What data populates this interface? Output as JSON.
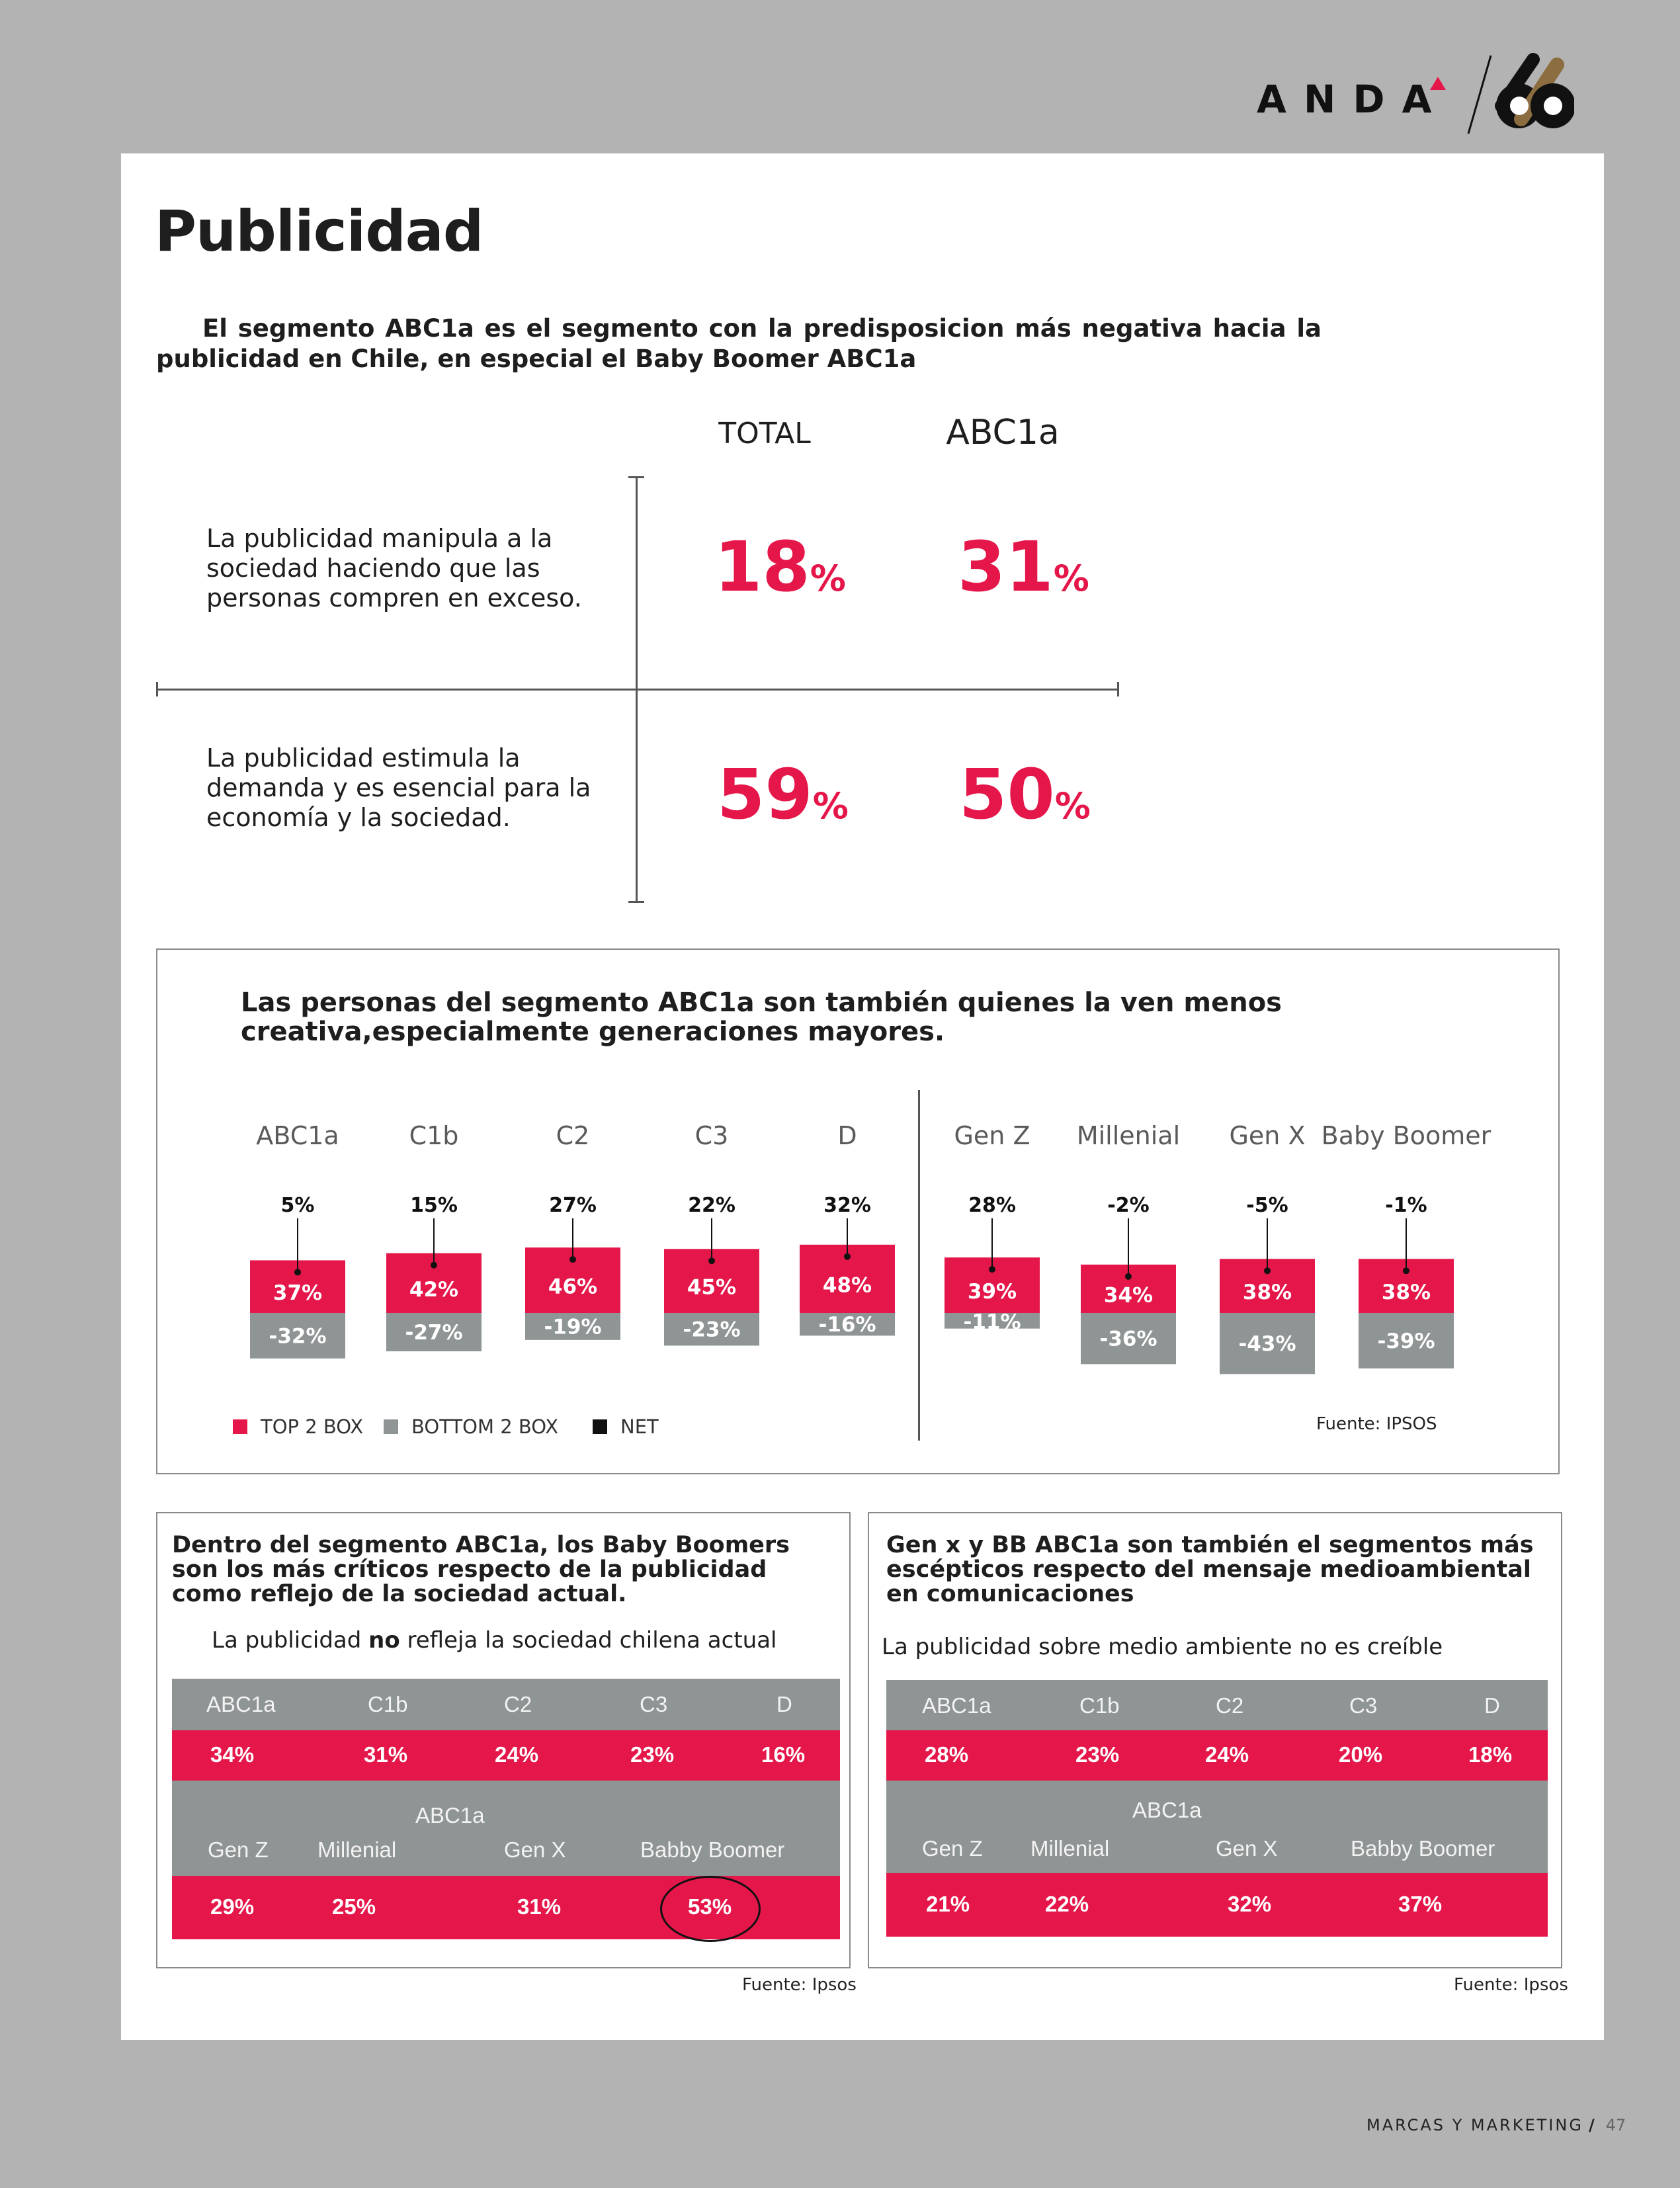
{
  "header": {
    "logo_text": "ANDA",
    "logo_mark": "66",
    "logo_accent_color": "#e5174a"
  },
  "title": "Publicidad",
  "intro": "El segmento ABC1a es el segmento con la predisposicion más negativa hacia la publicidad en Chile, en especial el Baby Boomer ABC1a",
  "matrix": {
    "col_total": "TOTAL",
    "col_abc": "ABC1a",
    "rows": [
      {
        "statement": "La publicidad manipula a la sociedad haciendo que las personas compren en exceso.",
        "total": "18",
        "abc": "31"
      },
      {
        "statement": "La publicidad estimula la demanda y es esencial para la economía y la sociedad.",
        "total": "59",
        "abc": "50"
      }
    ],
    "pct_sign": "%"
  },
  "chart": {
    "title": "Las personas del segmento ABC1a son también quienes la ven menos creativa,especialmente generaciones mayores.",
    "source": "Fuente: IPSOS",
    "legend": {
      "top": "TOP 2 BOX",
      "bottom": "BOTTOM 2 BOX",
      "net": "NET"
    },
    "colors": {
      "top": "#e5174a",
      "bottom": "#8f9495",
      "net": "#111111"
    }
  },
  "chart_data": {
    "type": "bar",
    "categories": [
      "ABC1a",
      "C1b",
      "C2",
      "C3",
      "D",
      "Gen Z",
      "Millenial",
      "Gen X",
      "Baby Boomer"
    ],
    "series": [
      {
        "name": "TOP 2 BOX",
        "values": [
          37,
          42,
          46,
          45,
          48,
          39,
          34,
          38,
          38
        ]
      },
      {
        "name": "BOTTOM 2 BOX",
        "values": [
          -32,
          -27,
          -19,
          -23,
          -16,
          -11,
          -36,
          -43,
          -39
        ]
      },
      {
        "name": "NET",
        "values": [
          5,
          15,
          27,
          22,
          32,
          28,
          -2,
          -5,
          -1
        ]
      }
    ]
  },
  "left_box": {
    "title": "Dentro del segmento ABC1a, los Baby Boomers son los más críticos respecto de la publicidad como reflejo de la sociedad actual.",
    "sub_pre": "La publicidad ",
    "sub_bold": "no",
    "sub_post": " refleja la sociedad chilena actual",
    "seg_headers": [
      "ABC1a",
      "C1b",
      "C2",
      "C3",
      "D"
    ],
    "seg_values": [
      "34%",
      "31%",
      "24%",
      "23%",
      "16%"
    ],
    "gen_group": "ABC1a",
    "gen_headers": [
      "Gen Z",
      "Millenial",
      "Gen X",
      "Babby Boomer"
    ],
    "gen_values": [
      "29%",
      "25%",
      "31%",
      "53%"
    ],
    "source": "Fuente: Ipsos"
  },
  "right_box": {
    "title": "Gen x y BB ABC1a son también el segmentos más escépticos respecto del mensaje medioambiental en comunicaciones",
    "sub": "La publicidad sobre medio ambiente no es creíble",
    "seg_headers": [
      "ABC1a",
      "C1b",
      "C2",
      "C3",
      "D"
    ],
    "seg_values": [
      "28%",
      "23%",
      "24%",
      "20%",
      "18%"
    ],
    "gen_group": "ABC1a",
    "gen_headers": [
      "Gen Z",
      "Millenial",
      "Gen X",
      "Babby Boomer"
    ],
    "gen_values": [
      "21%",
      "22%",
      "32%",
      "37%"
    ],
    "source": "Fuente: Ipsos"
  },
  "footer": {
    "section": "MARCAS Y MARKETING",
    "page": "47"
  }
}
